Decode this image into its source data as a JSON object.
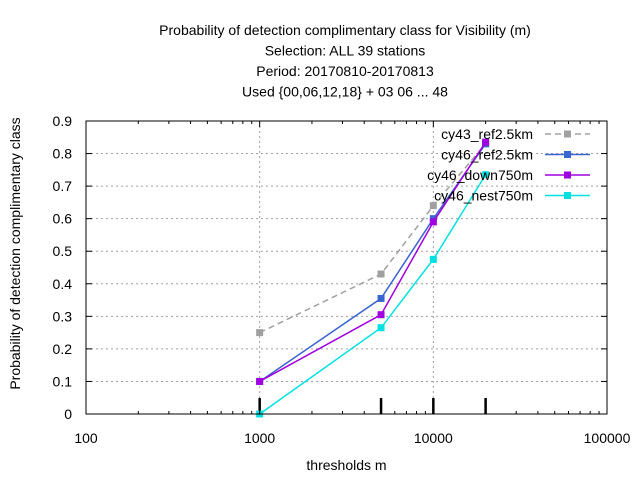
{
  "chart_data": {
    "type": "line",
    "title_lines": [
      "Probability of detection complimentary class  for Visibility (m)",
      "Selection: ALL     39 stations",
      "Period: 20170810-20170813",
      "Used {00,06,12,18} + 03 06 ... 48"
    ],
    "xlabel": "thresholds m",
    "ylabel": "Probability of detection complimentary class",
    "xscale": "log",
    "xlim": [
      100,
      100000
    ],
    "ylim": [
      0,
      0.9
    ],
    "x_ticks": [
      100,
      1000,
      10000,
      100000
    ],
    "x_tick_labels": [
      "100",
      "1000",
      "10000",
      "100000"
    ],
    "y_ticks": [
      0,
      0.1,
      0.2,
      0.3,
      0.4,
      0.5,
      0.6,
      0.7,
      0.8,
      0.9
    ],
    "y_tick_labels": [
      "0",
      "0.1",
      "0.2",
      "0.3",
      "0.4",
      "0.5",
      "0.6",
      "0.7",
      "0.8",
      "0.9"
    ],
    "grid": true,
    "legend_position": "top-right",
    "x": [
      1000,
      5000,
      10000,
      20000
    ],
    "series": [
      {
        "name": "cy43_ref2.5km",
        "color": "#a0a0a0",
        "dashed": true,
        "values": [
          0.25,
          0.43,
          0.64,
          0.83
        ]
      },
      {
        "name": "cy46_ref2.5km",
        "color": "#3a64d0",
        "dashed": false,
        "values": [
          0.1,
          0.355,
          0.6,
          0.83
        ]
      },
      {
        "name": "cy46_down750m",
        "color": "#a000e0",
        "dashed": false,
        "values": [
          0.1,
          0.305,
          0.59,
          0.835
        ]
      },
      {
        "name": "cy46_nest750m",
        "color": "#00e0e0",
        "dashed": false,
        "values": [
          0.0,
          0.265,
          0.475,
          0.735
        ]
      }
    ],
    "rug_x": [
      1000,
      5000,
      10000,
      20000
    ]
  }
}
